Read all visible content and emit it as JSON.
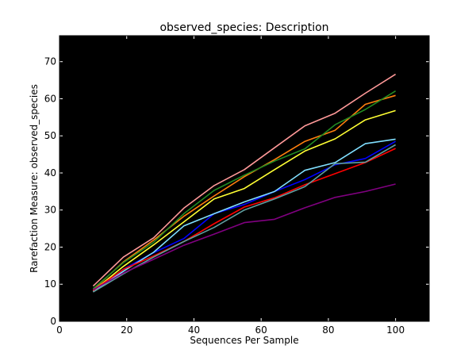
{
  "chart_data": {
    "type": "line",
    "title": "observed_species: Description",
    "xlabel": "Sequences Per Sample",
    "ylabel": "Rarefaction Measure: observed_species",
    "xlim": [
      0,
      110
    ],
    "ylim": [
      0,
      77
    ],
    "xticks": [
      0,
      20,
      40,
      60,
      80,
      100
    ],
    "yticks": [
      0,
      10,
      20,
      30,
      40,
      50,
      60,
      70
    ],
    "plot_background": "#000000",
    "grid": false,
    "legend": "none",
    "x": [
      10,
      19,
      28,
      37,
      46,
      55,
      64,
      73,
      82,
      91,
      100
    ],
    "series": [
      {
        "color": "#ff9999",
        "values": [
          9.5,
          17.3,
          22.5,
          30.5,
          36.6,
          40.9,
          46.8,
          52.7,
          56.1,
          61.5,
          66.6
        ]
      },
      {
        "color": "#ff7f0e",
        "values": [
          8.5,
          16.0,
          21.9,
          28.3,
          33.8,
          39.0,
          43.6,
          48.5,
          51.5,
          58.5,
          60.9
        ]
      },
      {
        "color": "#228b22",
        "values": [
          8.8,
          15.8,
          21.3,
          29.0,
          35.3,
          39.4,
          43.2,
          46.5,
          53.0,
          57.1,
          62.1
        ]
      },
      {
        "color": "#ffff33",
        "values": [
          8.2,
          14.8,
          20.6,
          26.8,
          33.0,
          35.8,
          40.9,
          45.9,
          49.2,
          54.3,
          56.8
        ]
      },
      {
        "color": "#0000ff",
        "values": [
          8.0,
          14.0,
          18.5,
          22.3,
          29.0,
          31.5,
          35.0,
          38.2,
          42.2,
          43.9,
          48.5
        ]
      },
      {
        "color": "#80dfff",
        "values": [
          8.0,
          13.5,
          18.6,
          25.7,
          29.0,
          32.2,
          35.0,
          40.7,
          42.8,
          47.9,
          49.1
        ]
      },
      {
        "color": "#ff0000",
        "values": [
          8.3,
          14.0,
          17.6,
          21.5,
          26.3,
          30.8,
          33.3,
          36.8,
          39.8,
          42.8,
          46.6
        ]
      },
      {
        "color": "#5f9ea0",
        "values": [
          7.9,
          12.8,
          17.3,
          21.5,
          25.3,
          30.0,
          33.0,
          36.3,
          42.5,
          42.9,
          47.6
        ]
      },
      {
        "color": "#800080",
        "values": [
          8.5,
          13.0,
          16.7,
          20.5,
          23.5,
          26.6,
          27.5,
          30.6,
          33.4,
          35.0,
          37.0
        ]
      }
    ]
  }
}
